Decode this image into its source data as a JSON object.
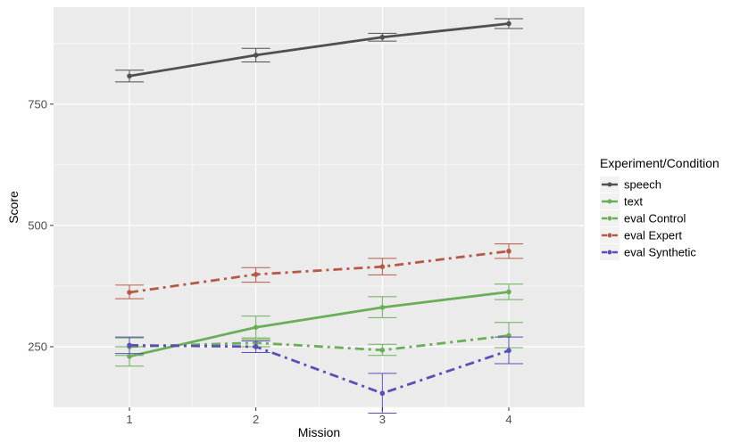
{
  "chart_data": {
    "type": "line",
    "xlabel": "Mission",
    "ylabel": "Score",
    "x": [
      1,
      2,
      3,
      4
    ],
    "x_ticks": [
      "1",
      "2",
      "3",
      "4"
    ],
    "y_ticks": [
      250,
      500,
      750
    ],
    "y_tick_labels": [
      "250",
      "500",
      "750"
    ],
    "xlim": [
      0.4,
      4.6
    ],
    "ylim": [
      125,
      950
    ],
    "grid": true,
    "legend_title": "Experiment/Condition",
    "legend_position": "right",
    "series": [
      {
        "name": "speech",
        "color": "#505050",
        "dash": "solid",
        "y": [
          808,
          851,
          888,
          916
        ],
        "error": [
          [
            796,
            820
          ],
          [
            837,
            865
          ],
          [
            880,
            896
          ],
          [
            906,
            926
          ]
        ]
      },
      {
        "name": "text",
        "color": "#6aae5a",
        "dash": "solid",
        "y": [
          230,
          290,
          331,
          363
        ],
        "error": [
          [
            210,
            250
          ],
          [
            268,
            313
          ],
          [
            310,
            353
          ],
          [
            347,
            379
          ]
        ]
      },
      {
        "name": "eval Control",
        "color": "#6aae5a",
        "dash": "dashdot",
        "y": [
          250,
          258,
          243,
          273
        ],
        "error": [
          [
            232,
            268
          ],
          [
            250,
            265
          ],
          [
            232,
            255
          ],
          [
            248,
            300
          ]
        ]
      },
      {
        "name": "eval Expert",
        "color": "#b55a48",
        "dash": "dashdot",
        "y": [
          362,
          399,
          415,
          447
        ],
        "error": [
          [
            349,
            377
          ],
          [
            383,
            413
          ],
          [
            398,
            432
          ],
          [
            432,
            462
          ]
        ]
      },
      {
        "name": "eval Synthetic",
        "color": "#5b4fb5",
        "dash": "dashdot",
        "y": [
          253,
          250,
          154,
          242
        ],
        "error": [
          [
            236,
            270
          ],
          [
            238,
            262
          ],
          [
            113,
            195
          ],
          [
            215,
            270
          ]
        ]
      }
    ]
  }
}
